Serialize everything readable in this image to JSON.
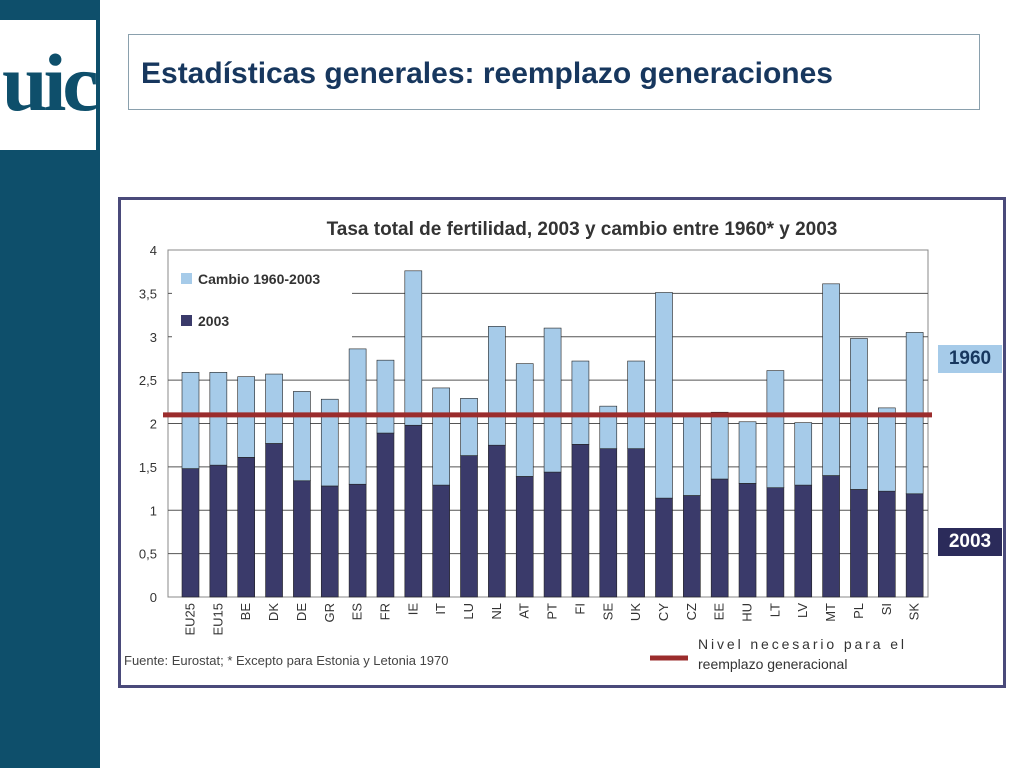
{
  "slide": {
    "logo_text": "uic",
    "title": "Estadísticas generales: reemplazo generaciones"
  },
  "badges": {
    "b1960": "1960",
    "b2003": "2003"
  },
  "chart_data": {
    "type": "bar",
    "stacked": true,
    "title": "Tasa total de fertilidad, 2003 y cambio entre 1960* y 2003",
    "xlabel": "",
    "ylabel": "",
    "ylim": [
      0,
      4
    ],
    "yticks": [
      "0",
      "0,5",
      "1",
      "1,5",
      "2",
      "2,5",
      "3",
      "3,5",
      "4"
    ],
    "grid": true,
    "legend_position": "top-left",
    "categories": [
      "EU25",
      "EU15",
      "BE",
      "DK",
      "DE",
      "GR",
      "ES",
      "FR",
      "IE",
      "IT",
      "LU",
      "NL",
      "AT",
      "PT",
      "FI",
      "SE",
      "UK",
      "CY",
      "CZ",
      "EE",
      "HU",
      "LT",
      "LV",
      "MT",
      "PL",
      "SI",
      "SK"
    ],
    "series": [
      {
        "name": "2003",
        "color": "#3a3a6a",
        "values": [
          1.48,
          1.52,
          1.61,
          1.77,
          1.34,
          1.28,
          1.3,
          1.89,
          1.98,
          1.29,
          1.63,
          1.75,
          1.39,
          1.44,
          1.76,
          1.71,
          1.71,
          1.14,
          1.17,
          1.36,
          1.31,
          1.26,
          1.29,
          1.4,
          1.24,
          1.22,
          1.19
        ]
      },
      {
        "name": "Cambio 1960-2003",
        "color": "#a6cbe9",
        "values": [
          1.11,
          1.07,
          0.93,
          0.8,
          1.03,
          1.0,
          1.56,
          0.84,
          1.78,
          1.12,
          0.66,
          1.37,
          1.3,
          1.66,
          0.96,
          0.49,
          1.01,
          2.37,
          0.95,
          0.77,
          0.71,
          1.35,
          0.72,
          2.21,
          1.74,
          0.96,
          1.86
        ]
      }
    ],
    "reference_line": {
      "value": 2.1,
      "label": "Nivel necesario para el reemplazo generacional",
      "color": "#9b2c2c"
    },
    "source": "Fuente: Eurostat; * Excepto para Estonia y Letonia 1970"
  }
}
